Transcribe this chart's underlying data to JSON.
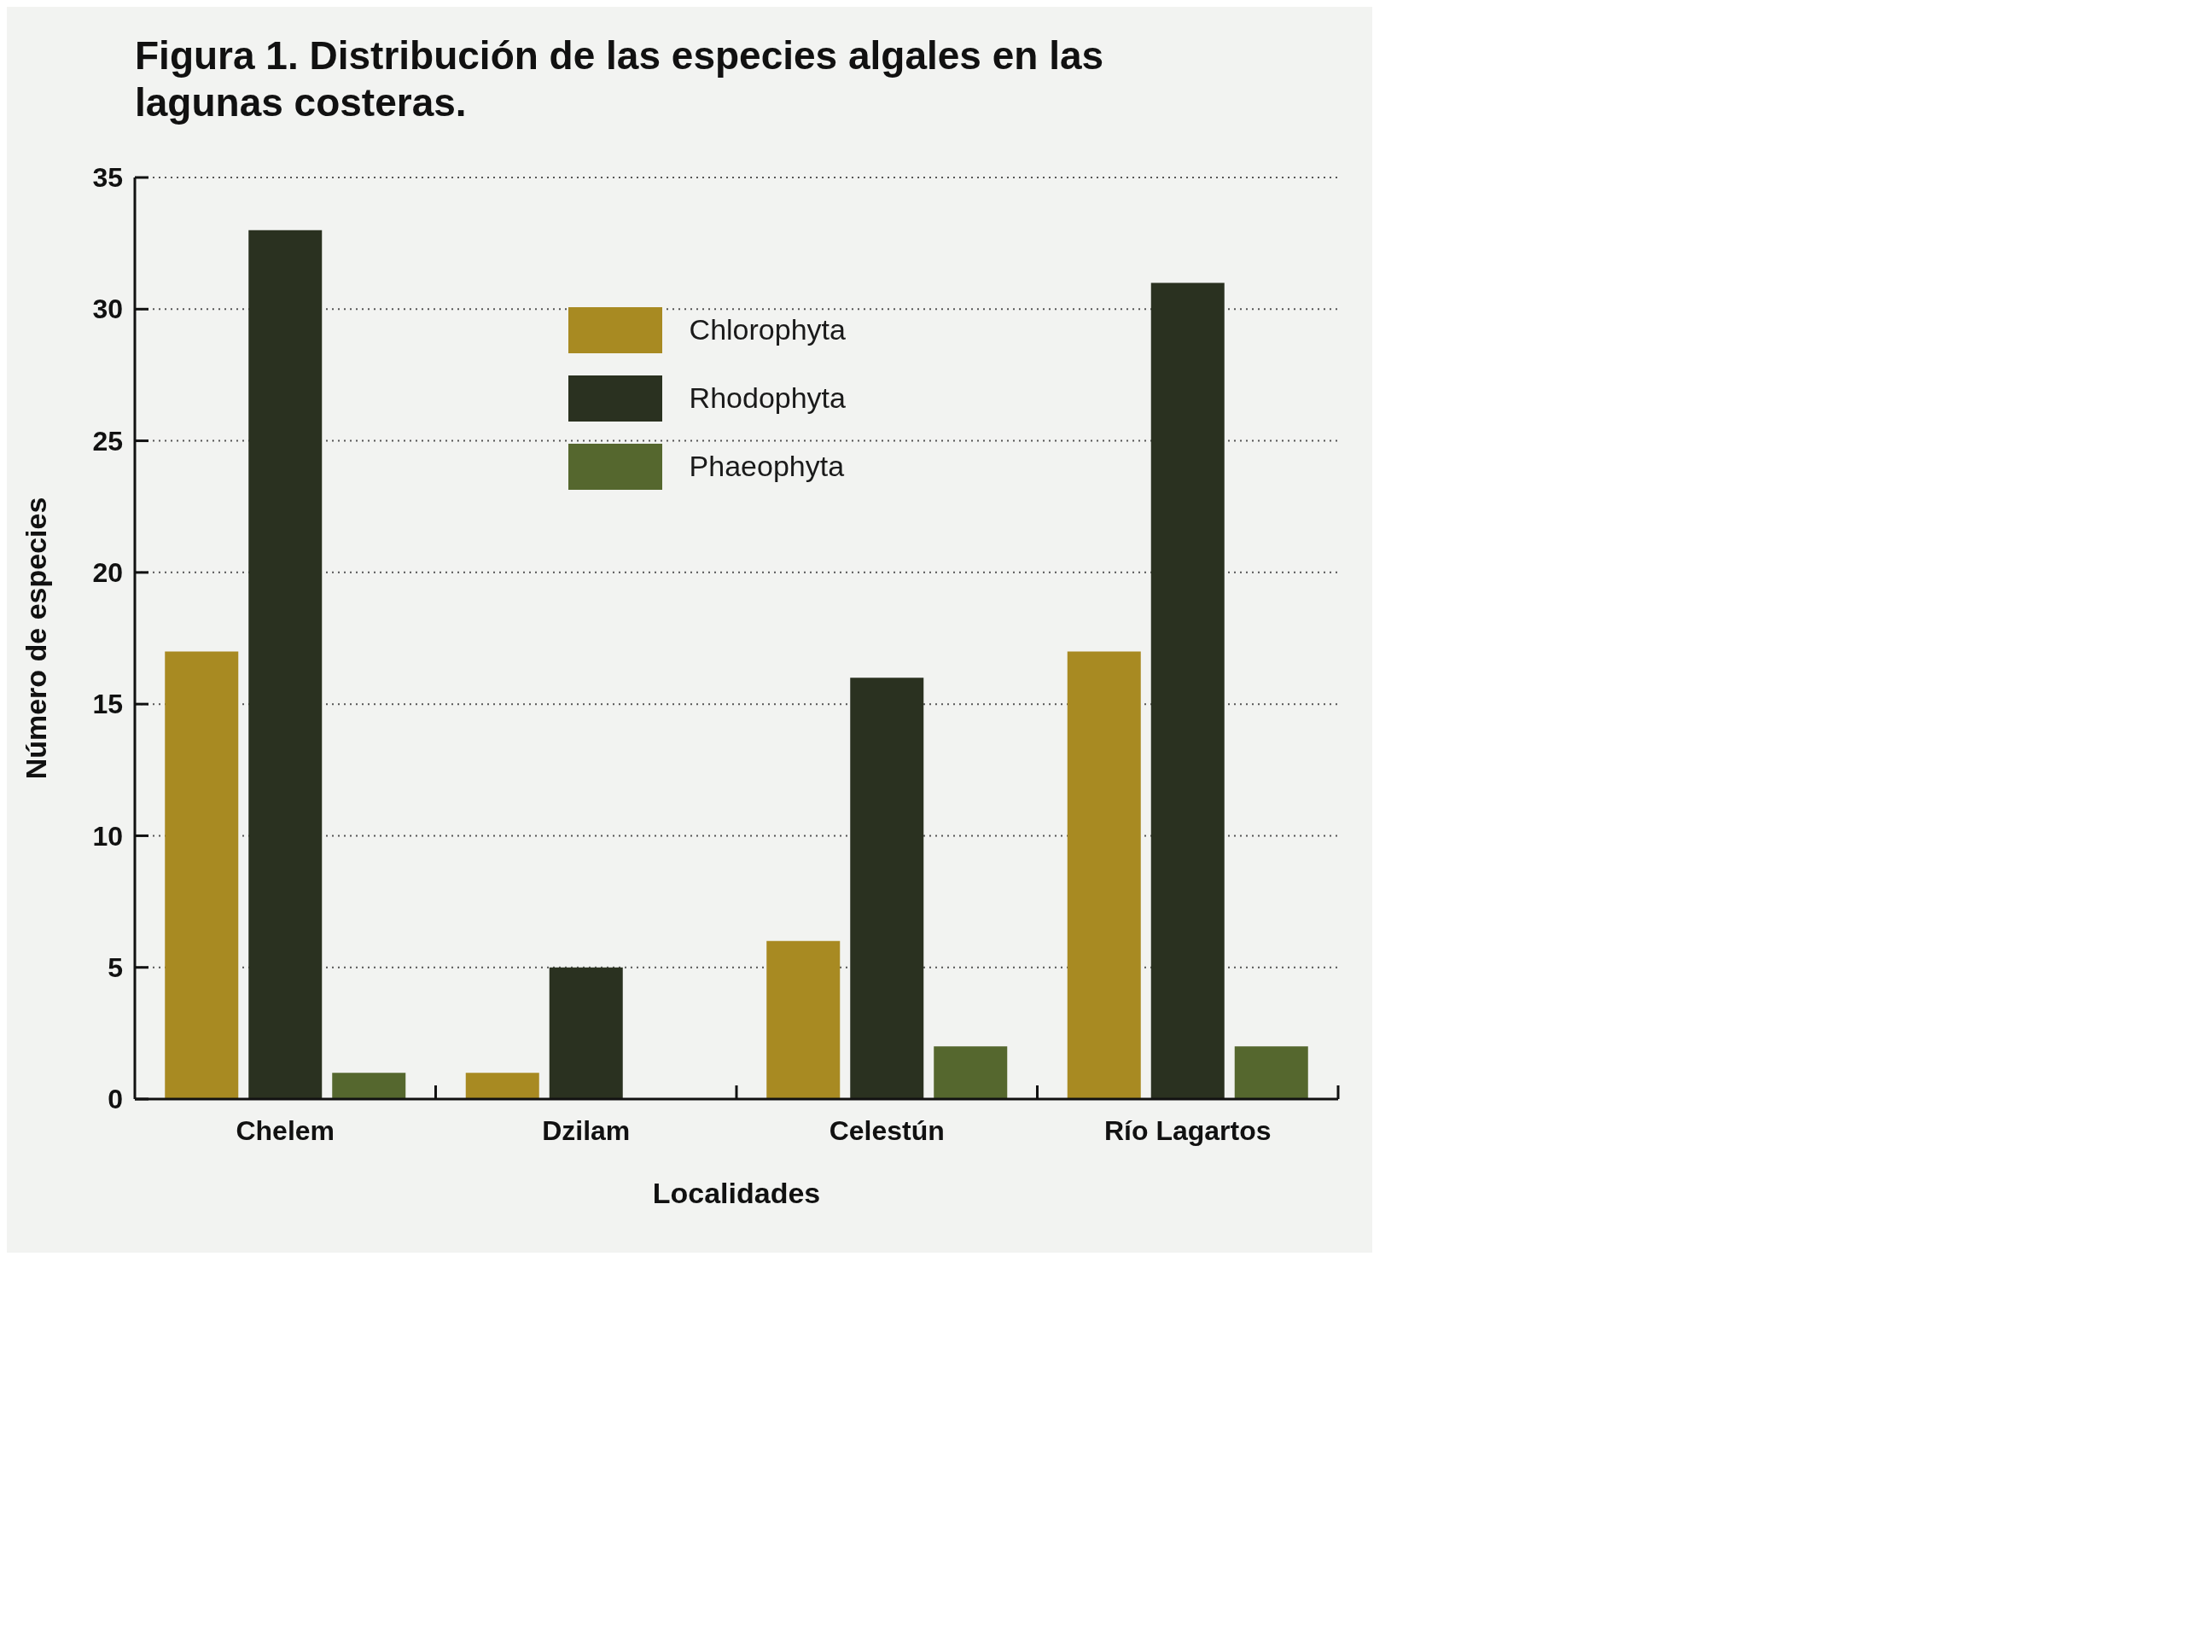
{
  "chart_data": {
    "type": "bar",
    "title": "Figura 1. Distribución de las especies algales en las lagunas costeras.",
    "xlabel": "Localidades",
    "ylabel": "Número de especies",
    "categories": [
      "Chelem",
      "Dzilam",
      "Celestún",
      "Río Lagartos"
    ],
    "series": [
      {
        "name": "Chlorophyta",
        "color": "#a88a22",
        "values": [
          17,
          1,
          6,
          17
        ]
      },
      {
        "name": "Rhodophyta",
        "color": "#2a3120",
        "values": [
          33,
          5,
          16,
          31
        ]
      },
      {
        "name": "Phaeophyta",
        "color": "#55672e",
        "values": [
          1,
          0,
          2,
          2
        ]
      }
    ],
    "ylim": [
      0,
      35
    ],
    "yticks": [
      0,
      5,
      10,
      15,
      20,
      25,
      30,
      35
    ],
    "grid": "y",
    "legend": "top"
  }
}
